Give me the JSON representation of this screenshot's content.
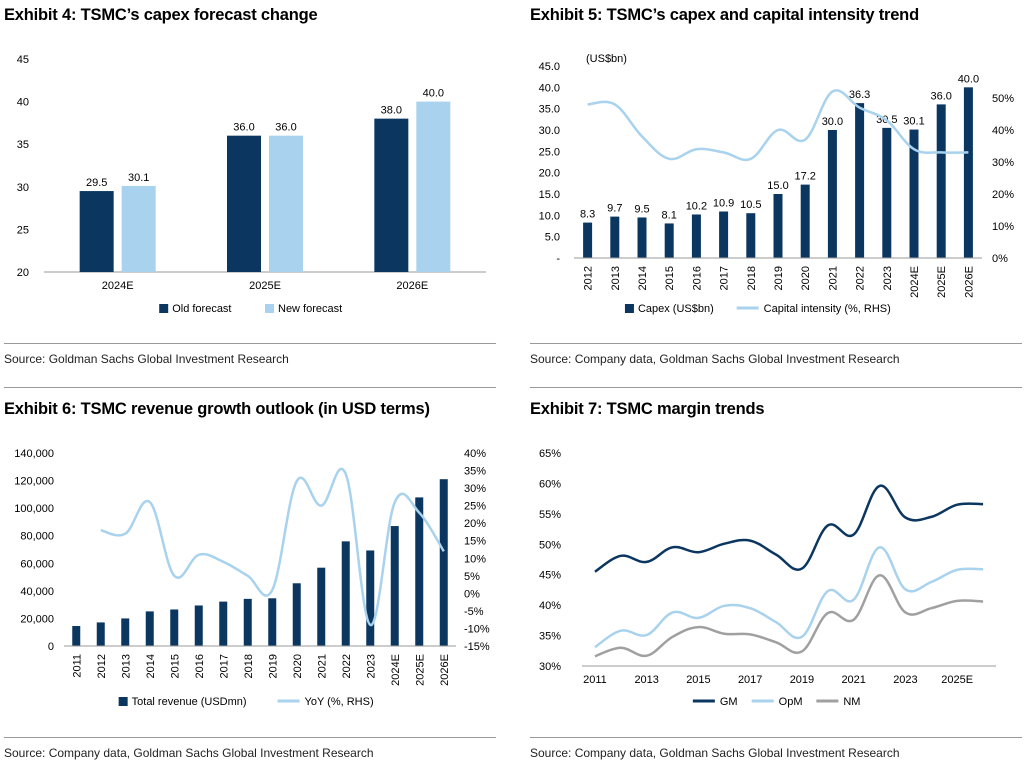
{
  "colors": {
    "dark": "#0b3660",
    "light": "#a8d2ee",
    "gray": "#a0a0a0"
  },
  "exhibit4": {
    "title": "Exhibit 4: TSMC’s capex forecast change",
    "source": "Source: Goldman Sachs Global Investment Research"
  },
  "exhibit5": {
    "title": "Exhibit 5: TSMC’s capex and capital intensity trend",
    "source": "Source: Company data, Goldman Sachs Global Investment Research"
  },
  "exhibit6": {
    "title": "Exhibit 6: TSMC revenue growth outlook (in USD terms)",
    "source": "Source: Company data, Goldman Sachs Global Investment Research"
  },
  "exhibit7": {
    "title": "Exhibit 7: TSMC margin trends",
    "source": "Source: Company data, Goldman Sachs Global Investment Research"
  },
  "chart_data": [
    {
      "id": "c4",
      "type": "bar",
      "categories": [
        "2024E",
        "2025E",
        "2026E"
      ],
      "series": [
        {
          "name": "Old forecast",
          "values": [
            29.5,
            36.0,
            38.0
          ],
          "labels": [
            "29.5",
            "36.0",
            "38.0"
          ]
        },
        {
          "name": "New forecast",
          "values": [
            30.1,
            36.0,
            40.0
          ],
          "labels": [
            "30.1",
            "36.0",
            "40.0"
          ]
        }
      ],
      "ylim": [
        20,
        45
      ],
      "yticks": [
        20,
        25,
        30,
        35,
        40,
        45
      ],
      "ytick_labels": [
        "20",
        "25",
        "30",
        "35",
        "40",
        "45"
      ],
      "legend": "bottom",
      "grid": false
    },
    {
      "id": "c5",
      "type": "bar",
      "categories": [
        "2012",
        "2013",
        "2014",
        "2015",
        "2016",
        "2017",
        "2018",
        "2019",
        "2020",
        "2021",
        "2022",
        "2023",
        "2024E",
        "2025E",
        "2026E"
      ],
      "series": [
        {
          "name": "Capex (US$bn)",
          "type": "bar",
          "values": [
            8.3,
            9.7,
            9.5,
            8.1,
            10.2,
            10.9,
            10.5,
            15.0,
            17.2,
            30.0,
            36.3,
            30.5,
            30.1,
            36.0,
            40.0
          ],
          "labels": [
            "8.3",
            "9.7",
            "9.5",
            "8.1",
            "10.2",
            "10.9",
            "10.5",
            "15.0",
            "17.2",
            "30.0",
            "36.3",
            "30.5",
            "30.1",
            "36.0",
            "40.0"
          ]
        },
        {
          "name": "Capital intensity (%, RHS)",
          "type": "line",
          "axis": "right",
          "values": [
            48,
            48,
            38,
            31,
            34,
            33,
            31,
            40,
            37,
            52,
            47,
            43,
            34,
            33,
            33
          ]
        }
      ],
      "left_unit_label": "(US$bn)",
      "ylim": [
        0,
        45
      ],
      "yticks": [
        0,
        5,
        10,
        15,
        20,
        25,
        30,
        35,
        40,
        45
      ],
      "ytick_labels": [
        "-",
        "5.0",
        "10.0",
        "15.0",
        "20.0",
        "25.0",
        "30.0",
        "35.0",
        "40.0",
        "45.0"
      ],
      "y2lim": [
        0,
        60
      ],
      "y2ticks": [
        0,
        10,
        20,
        30,
        40,
        50
      ],
      "y2tick_labels": [
        "0%",
        "10%",
        "20%",
        "30%",
        "40%",
        "50%"
      ],
      "legend": "bottom",
      "grid": false
    },
    {
      "id": "c6",
      "type": "bar",
      "categories": [
        "2011",
        "2012",
        "2013",
        "2014",
        "2015",
        "2016",
        "2017",
        "2018",
        "2019",
        "2020",
        "2021",
        "2022",
        "2023",
        "2024E",
        "2025E",
        "2026E"
      ],
      "series": [
        {
          "name": "Total revenue (USDmn)",
          "type": "bar",
          "values": [
            14500,
            17100,
            20000,
            25100,
            26500,
            29400,
            32200,
            34200,
            34600,
            45500,
            56800,
            75900,
            69300,
            87000,
            107800,
            121000
          ]
        },
        {
          "name": "YoY (%, RHS)",
          "type": "line",
          "axis": "right",
          "values": [
            null,
            18,
            17,
            26,
            5,
            11,
            9,
            5,
            1,
            32,
            25,
            34,
            -9,
            26,
            23,
            12
          ]
        }
      ],
      "ylim": [
        0,
        140000
      ],
      "yticks": [
        0,
        20000,
        40000,
        60000,
        80000,
        100000,
        120000,
        140000
      ],
      "ytick_labels": [
        "0",
        "20,000",
        "40,000",
        "60,000",
        "80,000",
        "100,000",
        "120,000",
        "140,000"
      ],
      "y2lim": [
        -15,
        40
      ],
      "y2ticks": [
        -15,
        -10,
        -5,
        0,
        5,
        10,
        15,
        20,
        25,
        30,
        35,
        40
      ],
      "y2tick_labels": [
        "-15%",
        "-10%",
        "-5%",
        "0%",
        "5%",
        "10%",
        "15%",
        "20%",
        "25%",
        "30%",
        "35%",
        "40%"
      ],
      "legend": "bottom",
      "grid": false
    },
    {
      "id": "c7",
      "type": "line",
      "x": [
        2011,
        2012,
        2013,
        2014,
        2015,
        2016,
        2017,
        2018,
        2019,
        2020,
        2021,
        2022,
        2023,
        2024,
        2025,
        2026
      ],
      "xticks": [
        2011,
        2013,
        2015,
        2017,
        2019,
        2021,
        2023,
        2025
      ],
      "xtick_labels": [
        "2011",
        "2013",
        "2015",
        "2017",
        "2019",
        "2021",
        "2023",
        "2025E"
      ],
      "series": [
        {
          "name": "GM",
          "values": [
            45.5,
            48.1,
            47.1,
            49.5,
            48.7,
            50.1,
            50.6,
            48.3,
            46.0,
            53.1,
            51.6,
            59.6,
            54.4,
            54.5,
            56.5,
            56.6
          ]
        },
        {
          "name": "OpM",
          "values": [
            33.1,
            35.8,
            35.1,
            38.8,
            37.9,
            39.9,
            39.5,
            37.2,
            34.8,
            42.3,
            40.9,
            49.5,
            42.6,
            43.8,
            45.8,
            45.9
          ]
        },
        {
          "name": "NM",
          "values": [
            31.6,
            33.0,
            31.7,
            34.8,
            36.4,
            35.3,
            35.2,
            33.9,
            32.4,
            38.7,
            37.6,
            44.9,
            38.8,
            39.5,
            40.7,
            40.6
          ]
        }
      ],
      "ylim": [
        30,
        65
      ],
      "yticks": [
        30,
        35,
        40,
        45,
        50,
        55,
        60,
        65
      ],
      "ytick_labels": [
        "30%",
        "35%",
        "40%",
        "45%",
        "50%",
        "55%",
        "60%",
        "65%"
      ],
      "legend": "bottom",
      "grid": false
    }
  ]
}
